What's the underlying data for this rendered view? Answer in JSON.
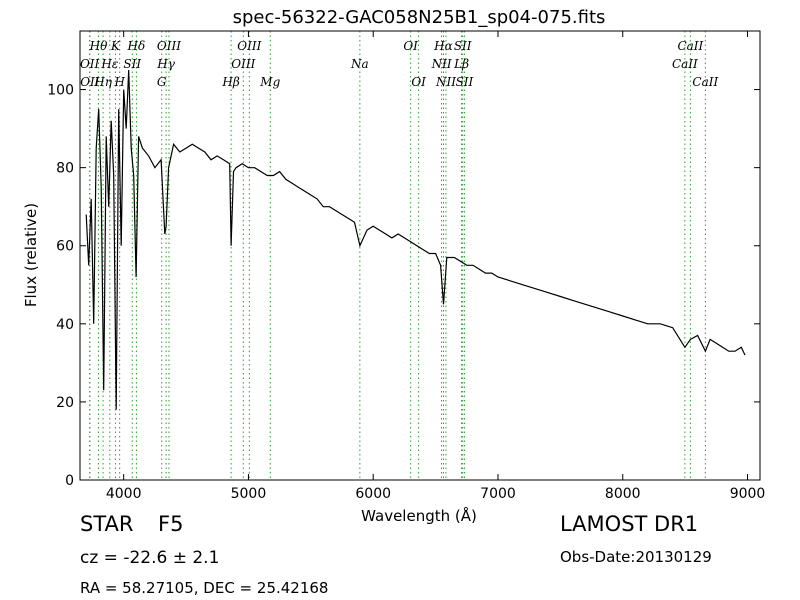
{
  "chart_data": {
    "type": "line",
    "title": "spec-56322-GAC058N25B1_sp04-075.fits",
    "xlabel": "Wavelength (Å)",
    "ylabel": "Flux (relative)",
    "xlim": [
      3650,
      9100
    ],
    "ylim": [
      0,
      115
    ],
    "xticks": [
      4000,
      5000,
      6000,
      7000,
      8000,
      9000
    ],
    "yticks": [
      0,
      20,
      40,
      60,
      80,
      100
    ],
    "grid": false,
    "series": [
      {
        "x": [
          3700,
          3720,
          3740,
          3760,
          3780,
          3800,
          3820,
          3840,
          3860,
          3880,
          3900,
          3920,
          3940,
          3960,
          3980,
          4000,
          4020,
          4040,
          4060,
          4080,
          4100,
          4120,
          4150,
          4200,
          4250,
          4300,
          4330,
          4340,
          4360,
          4400,
          4450,
          4500,
          4550,
          4600,
          4650,
          4700,
          4750,
          4800,
          4850,
          4861,
          4880,
          4900,
          4950,
          5000,
          5050,
          5100,
          5150,
          5200,
          5250,
          5300,
          5350,
          5400,
          5450,
          5500,
          5550,
          5600,
          5650,
          5700,
          5750,
          5800,
          5850,
          5893,
          5950,
          6000,
          6050,
          6100,
          6150,
          6200,
          6250,
          6300,
          6350,
          6400,
          6450,
          6500,
          6540,
          6563,
          6590,
          6650,
          6700,
          6750,
          6800,
          6850,
          6900,
          6950,
          7000,
          7100,
          7200,
          7300,
          7400,
          7500,
          7600,
          7700,
          7800,
          7900,
          8000,
          8100,
          8200,
          8300,
          8400,
          8498,
          8542,
          8600,
          8662,
          8700,
          8750,
          8800,
          8850,
          8900,
          8950,
          8980
        ],
        "y": [
          68,
          55,
          72,
          40,
          85,
          95,
          75,
          23,
          88,
          70,
          92,
          78,
          18,
          95,
          60,
          100,
          90,
          105,
          85,
          78,
          52,
          88,
          85,
          83,
          80,
          82,
          63,
          65,
          80,
          86,
          84,
          85,
          86,
          85,
          84,
          82,
          83,
          82,
          81,
          60,
          79,
          80,
          81,
          80,
          80,
          79,
          78,
          78,
          79,
          77,
          76,
          75,
          74,
          73,
          72,
          70,
          70,
          69,
          68,
          67,
          66,
          60,
          64,
          65,
          64,
          63,
          62,
          63,
          62,
          61,
          60,
          59,
          58,
          58,
          55,
          45,
          57,
          57,
          56,
          55,
          55,
          54,
          53,
          53,
          52,
          51,
          50,
          49,
          48,
          47,
          46,
          45,
          44,
          43,
          42,
          41,
          40,
          40,
          39,
          34,
          36,
          37,
          33,
          36,
          35,
          34,
          33,
          33,
          34,
          32
        ]
      }
    ],
    "line_labels": [
      {
        "name": "OII",
        "wavelength": 3727,
        "row": 1
      },
      {
        "name": "OII",
        "wavelength": 3729,
        "row": 2
      },
      {
        "name": "Hθ",
        "wavelength": 3798,
        "row": 0
      },
      {
        "name": "Hη",
        "wavelength": 3835,
        "row": 2
      },
      {
        "name": "Hε",
        "wavelength": 3889,
        "row": 1
      },
      {
        "name": "K",
        "wavelength": 3934,
        "row": 0
      },
      {
        "name": "H",
        "wavelength": 3968,
        "row": 2
      },
      {
        "name": "SII",
        "wavelength": 4069,
        "row": 1
      },
      {
        "name": "Hδ",
        "wavelength": 4102,
        "row": 0
      },
      {
        "name": "Hγ",
        "wavelength": 4340,
        "row": 1
      },
      {
        "name": "G",
        "wavelength": 4305,
        "row": 2
      },
      {
        "name": "OIII",
        "wavelength": 4363,
        "row": 0
      },
      {
        "name": "Hβ",
        "wavelength": 4861,
        "row": 2
      },
      {
        "name": "OIII",
        "wavelength": 4959,
        "row": 1
      },
      {
        "name": "OIII",
        "wavelength": 5007,
        "row": 0
      },
      {
        "name": "Mg",
        "wavelength": 5175,
        "row": 2
      },
      {
        "name": "Na",
        "wavelength": 5893,
        "row": 1
      },
      {
        "name": "OI",
        "wavelength": 6300,
        "row": 0
      },
      {
        "name": "OI",
        "wavelength": 6364,
        "row": 2
      },
      {
        "name": "NII",
        "wavelength": 6548,
        "row": 1
      },
      {
        "name": "Hα",
        "wavelength": 6563,
        "row": 0
      },
      {
        "name": "NII",
        "wavelength": 6583,
        "row": 2
      },
      {
        "name": "Lβ",
        "wavelength": 6708,
        "row": 1
      },
      {
        "name": "SII",
        "wavelength": 6717,
        "row": 0
      },
      {
        "name": "SII",
        "wavelength": 6731,
        "row": 2
      },
      {
        "name": "CaII",
        "wavelength": 8498,
        "row": 1
      },
      {
        "name": "CaII",
        "wavelength": 8542,
        "row": 0
      },
      {
        "name": "CaII",
        "wavelength": 8662,
        "row": 2
      }
    ],
    "colors": {
      "spectrum": "#000000",
      "line_markers": "#2ca02c"
    }
  },
  "info": {
    "class": "STAR",
    "subclass": "F5",
    "survey": "LAMOST DR1",
    "cz": "cz = -22.6 ± 2.1",
    "obs_date": "Obs-Date:20130129",
    "radec": "RA = 58.27105, DEC = 25.42168"
  }
}
